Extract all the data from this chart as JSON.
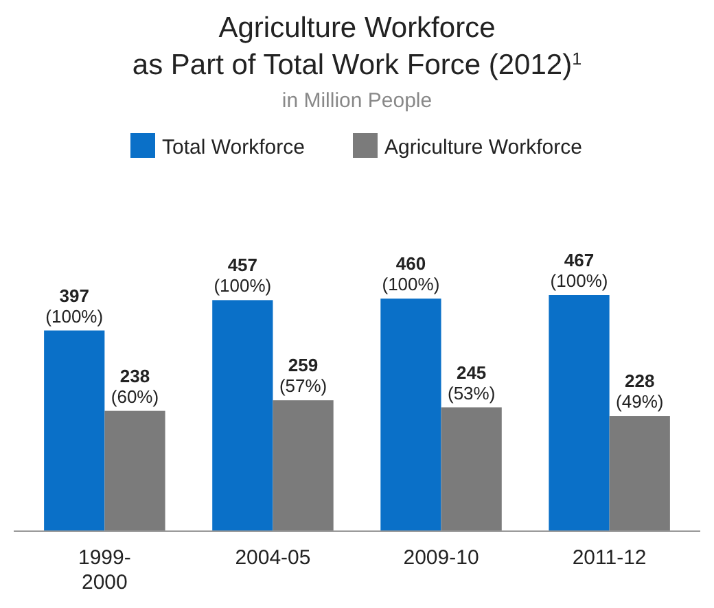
{
  "chart_data": {
    "type": "bar",
    "title": "Agriculture Workforce\nas Part of Total Work Force (2012)$^{1}$",
    "subtitle": "in Million People",
    "categories": [
      "1999-2000",
      "2004-05",
      "2009-10",
      "2011-12"
    ],
    "series": [
      {
        "name": "Total Workforce",
        "color": "#0a70c8",
        "values": [
          397,
          457,
          460,
          467
        ],
        "value_labels": [
          "397\n(100%)",
          "457\n(100%)",
          "460\n(100%)",
          "467\n(100%)"
        ]
      },
      {
        "name": "Agriculture Workforce",
        "color": "#7b7b7b",
        "values": [
          238,
          259,
          245,
          228
        ],
        "value_labels": [
          "238\n(60%)",
          "259\n(57%)",
          "245\n(53%)",
          "228\n(49%)"
        ]
      }
    ],
    "legend": "top"
  }
}
